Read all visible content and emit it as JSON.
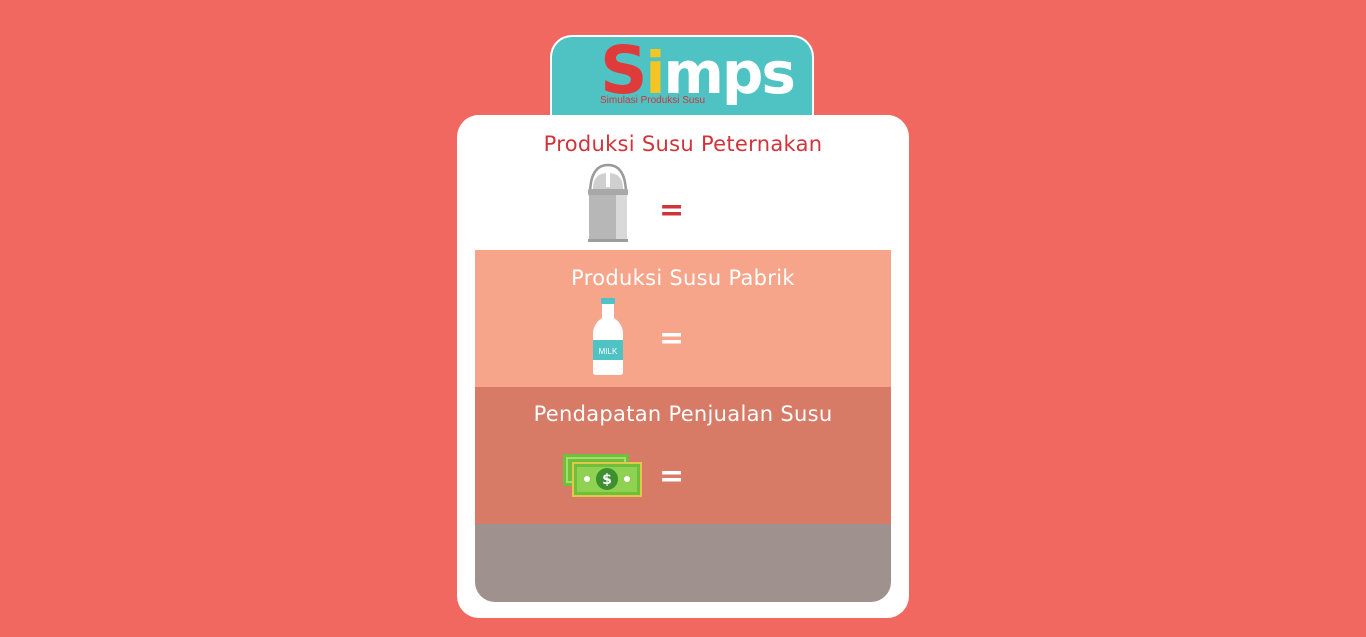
{
  "logo": {
    "letter_s": "S",
    "letter_i": "i",
    "rest": "mps",
    "subtitle": "Simulasi Produksi Susu"
  },
  "farm": {
    "title": "Produksi Susu Peternakan",
    "equals": "=",
    "icon": "milk-can-icon"
  },
  "factory": {
    "title": "Produksi Susu Pabrik",
    "equals": "=",
    "icon": "milk-bottle-icon",
    "bottle_label": "MILK"
  },
  "revenue": {
    "title": "Pendapatan Penjualan Susu",
    "equals": "=",
    "icon": "money-icon",
    "currency_symbol": "$"
  },
  "colors": {
    "background": "#f06860",
    "logo_tab": "#4fc3c4",
    "factory_band": "#f7a58a",
    "revenue_band": "#d77a66",
    "footer_band": "#9f918d",
    "title_red": "#d0343a"
  }
}
